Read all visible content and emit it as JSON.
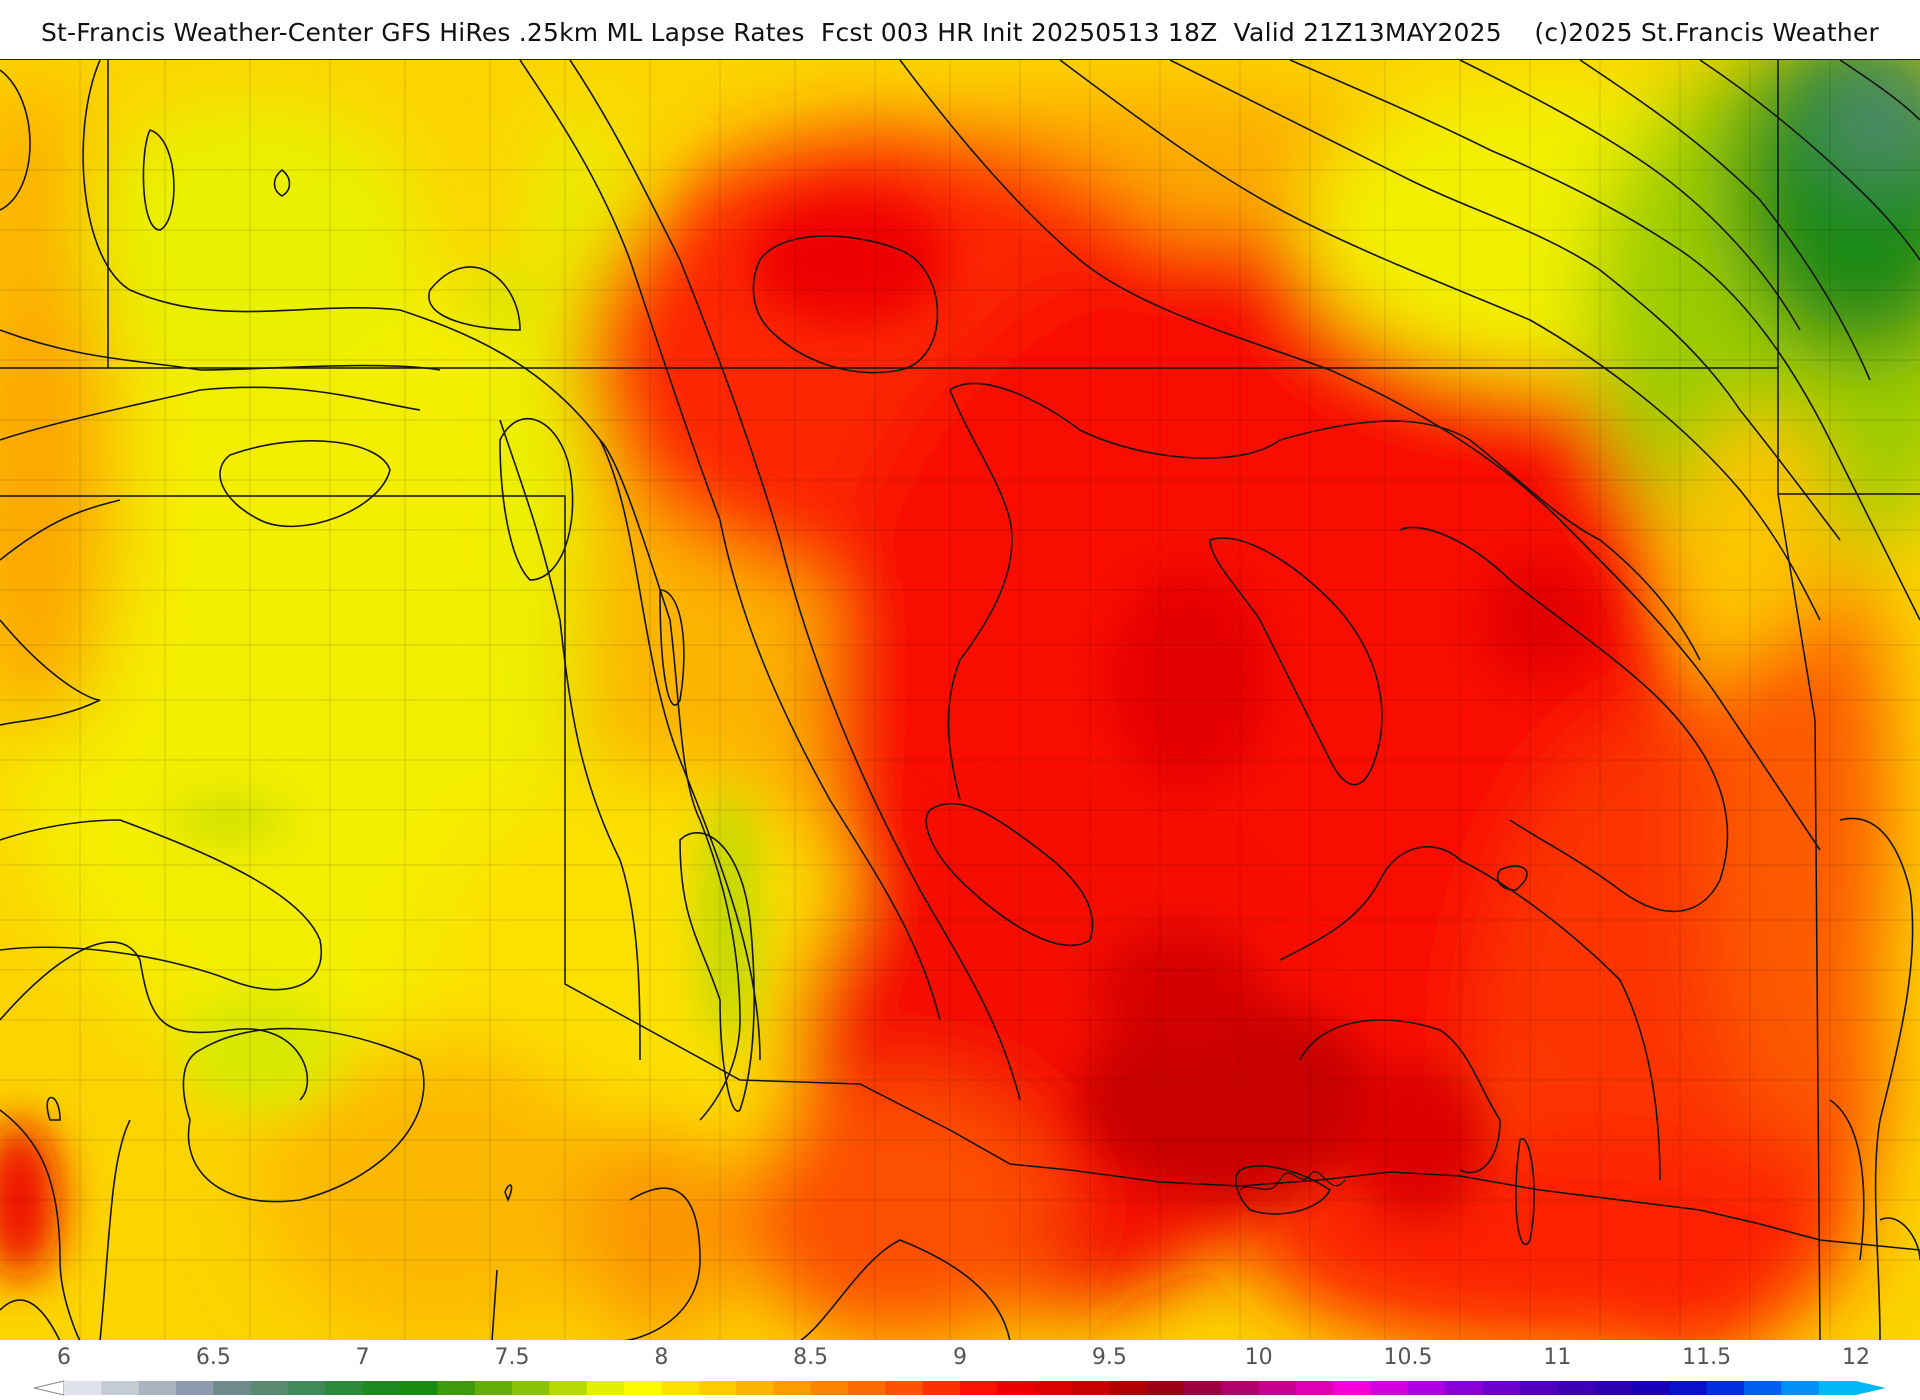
{
  "header": {
    "title": "St-Francis Weather-Center GFS HiRes .25km ML Lapse Rates  Fcst 003 HR Init 20250513 18Z  Valid 21Z13MAY2025    (c)2025 St.Francis Weather"
  },
  "legend": {
    "tick_labels": [
      "6",
      "6.5",
      "7",
      "7.5",
      "8",
      "8.5",
      "9",
      "9.5",
      "10",
      "10.5",
      "11",
      "11.5",
      "12"
    ],
    "colors": [
      "#dfe2e8",
      "#c6ccd6",
      "#aab4c2",
      "#8d9bae",
      "#6f8a8a",
      "#5a8a72",
      "#3f8a58",
      "#2a8a3a",
      "#1f8a1f",
      "#178a10",
      "#3c9a0c",
      "#62ad08",
      "#8cc206",
      "#b8d804",
      "#e2ee02",
      "#fcfc00",
      "#fce400",
      "#fccc00",
      "#fcb400",
      "#fc9c00",
      "#fc8400",
      "#fc6c00",
      "#fc5000",
      "#fc3000",
      "#fc1000",
      "#ee0000",
      "#dc0000",
      "#c80000",
      "#b00000",
      "#9a0014",
      "#9c0040",
      "#b0006a",
      "#c8008e",
      "#e000b4",
      "#f400d8",
      "#d000e0",
      "#ac00e0",
      "#8a00d8",
      "#6c00cc",
      "#5200c0",
      "#3e00b4",
      "#2a00b0",
      "#1800b8",
      "#0a10cc",
      "#0030e0",
      "#0060f0",
      "#0090f8",
      "#00b8f8"
    ]
  }
}
